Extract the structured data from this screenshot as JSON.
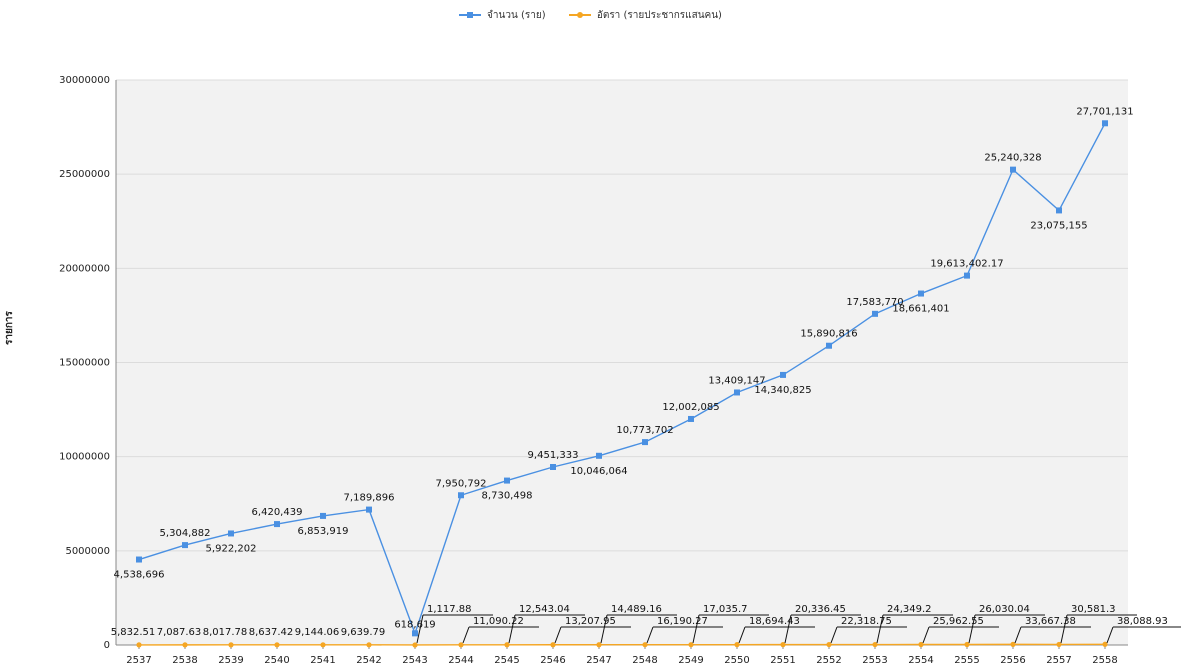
{
  "chart_data": {
    "type": "line",
    "title": "",
    "xlabel": "",
    "ylabel": "รายการ",
    "ylim": [
      0,
      30000000
    ],
    "y_ticks": [
      "0",
      "5000000",
      "10000000",
      "15000000",
      "20000000",
      "25000000",
      "30000000"
    ],
    "grid": true,
    "legend_position": "top-center",
    "categories": [
      "2537",
      "2538",
      "2539",
      "2540",
      "2541",
      "2542",
      "2543",
      "2544",
      "2545",
      "2546",
      "2547",
      "2548",
      "2549",
      "2550",
      "2551",
      "2552",
      "2553",
      "2554",
      "2555",
      "2556",
      "2557",
      "2558"
    ],
    "series": [
      {
        "name": "จำนวน (ราย)",
        "color": "#4a90e2",
        "values": [
          4538696,
          5304882,
          5922202,
          6420439,
          6853919,
          7189896,
          618619,
          7950792,
          8730498,
          9451333,
          10046064,
          10773702,
          12002085,
          13409147,
          14340825,
          15890816,
          17583770,
          18661401,
          19613402.17,
          25240328,
          23075155,
          27701131
        ],
        "labels": [
          "4,538,696",
          "5,304,882",
          "5,922,202",
          "6,420,439",
          "6,853,919",
          "7,189,896",
          "618,619",
          "7,950,792",
          "8,730,498",
          "9,451,333",
          "10,046,064",
          "10,773,702",
          "12,002,085",
          "13,409,147",
          "14,340,825",
          "15,890,816",
          "17,583,770",
          "18,661,401",
          "19,613,402.17",
          "25,240,328",
          "23,075,155",
          "27,701,131"
        ]
      },
      {
        "name": "อัตรา (รายประชากรแสนคน)",
        "color": "#f5a623",
        "values": [
          5832.51,
          7087.63,
          8017.78,
          8637.42,
          9144.06,
          9639.79,
          1117.88,
          11090.22,
          12543.04,
          13207.95,
          14489.16,
          16190.27,
          17035.7,
          18694.43,
          20336.45,
          22318.75,
          24349.2,
          25962.55,
          26030.04,
          33667.38,
          30581.3,
          38088.93
        ],
        "labels": [
          "5,832.51",
          "7,087.63",
          "8,017.78",
          "8,637.42",
          "9,144.06",
          "9,639.79",
          "1,117.88",
          "11,090.22",
          "12,543.04",
          "13,207.95",
          "14,489.16",
          "16,190.27",
          "17,035.7",
          "18,694.43",
          "20,336.45",
          "22,318.75",
          "24,349.2",
          "25,962.55",
          "26,030.04",
          "33,667.38",
          "30,581.3",
          "38,088.93"
        ]
      }
    ]
  }
}
